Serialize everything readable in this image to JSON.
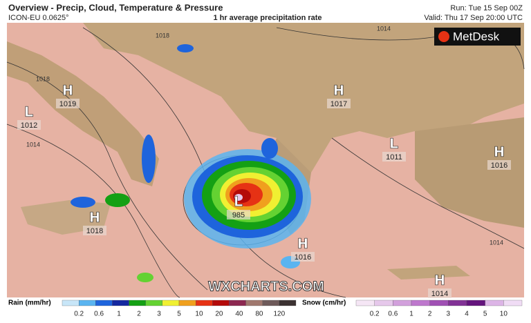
{
  "header": {
    "title": "Overview - Precip, Cloud, Temperature & Pressure",
    "model": "ICON-EU 0.0625°",
    "subtitle": "1 hr average precipitation rate",
    "run": "Run: Tue 15 Sep 00Z",
    "valid": "Valid: Thu 17 Sep 20:00 UTC",
    "logo": "MetDesk"
  },
  "watermark": "WXCHARTS.COM",
  "pressure_systems": [
    {
      "type": "H",
      "value": "1019"
    },
    {
      "type": "L",
      "value": "1012"
    },
    {
      "type": "H",
      "value": "1018"
    },
    {
      "type": "H",
      "value": "1017"
    },
    {
      "type": "L",
      "value": "1011"
    },
    {
      "type": "H",
      "value": "1016"
    },
    {
      "type": "L",
      "value": "985"
    },
    {
      "type": "H",
      "value": "1016"
    },
    {
      "type": "H",
      "value": "1014"
    }
  ],
  "isobar_labels": [
    "1018",
    "1014",
    "1018",
    "1014",
    "1014"
  ],
  "rain_legend": {
    "title": "Rain (mm/hr)",
    "ticks": [
      0.2,
      0.6,
      1,
      2,
      3,
      5,
      10,
      20,
      40,
      80,
      120
    ],
    "colors": [
      "#c8e6f8",
      "#5ab4f0",
      "#1e64dc",
      "#1428a0",
      "#14a014",
      "#64d232",
      "#f0f032",
      "#f0a01e",
      "#e63214",
      "#b40a0a",
      "#8c2850",
      "#a0786e",
      "#6e5a5a",
      "#3c3232"
    ]
  },
  "snow_legend": {
    "title": "Snow (cm/hr)",
    "ticks": [
      0.2,
      0.6,
      1,
      2,
      3,
      4,
      5,
      10
    ],
    "colors": [
      "#f5e6f5",
      "#e6c8eb",
      "#d2a0dc",
      "#be78cd",
      "#a050b4",
      "#823296",
      "#64147d",
      "#dcb4e6",
      "#f0dcf5"
    ]
  }
}
